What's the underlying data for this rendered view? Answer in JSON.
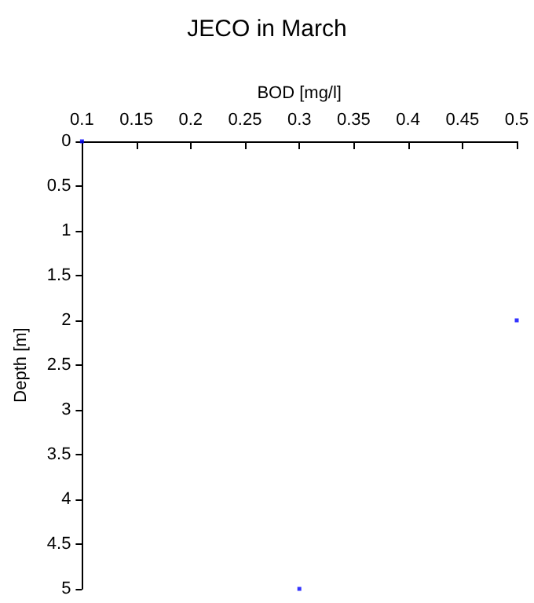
{
  "chart_data": {
    "type": "scatter",
    "title": "JECO in March",
    "xlabel": "BOD [mg/l]",
    "ylabel": "Depth [m]",
    "x": [
      0.1,
      0.5,
      0.3
    ],
    "series": [
      {
        "color": "#0000ff",
        "values": [
          0,
          2,
          5
        ]
      }
    ],
    "xlim": [
      0.1,
      0.5
    ],
    "xticks": [
      0.1,
      0.15,
      0.2,
      0.25,
      0.3,
      0.35,
      0.4,
      0.45,
      0.5
    ],
    "ylim": [
      5,
      0
    ],
    "yticks": [
      0,
      0.5,
      1,
      1.5,
      2,
      2.5,
      3,
      3.5,
      4,
      4.5,
      5
    ],
    "marker": "square",
    "grid": false
  }
}
